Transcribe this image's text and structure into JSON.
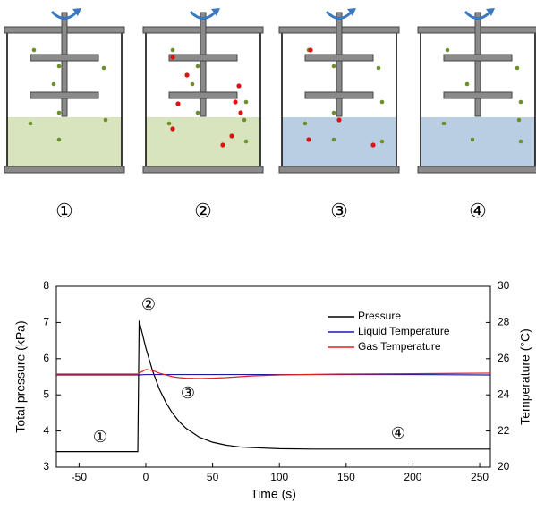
{
  "diagram": {
    "labels": [
      "①",
      "②",
      "③",
      "④"
    ]
  },
  "chart_data": {
    "type": "line",
    "xlabel": "Time (s)",
    "ylabel": "Total pressure (kPa)",
    "y2label": "Temperature (°C)",
    "x": [
      -67,
      -6,
      -5,
      0,
      5,
      10,
      15,
      20,
      25,
      30,
      40,
      50,
      60,
      70,
      80,
      100,
      125,
      150,
      200,
      258
    ],
    "series": [
      {
        "name": "Pressure",
        "color": "#000000",
        "values": [
          3.43,
          3.43,
          7.05,
          6.3,
          5.67,
          5.17,
          4.79,
          4.49,
          4.26,
          4.08,
          3.83,
          3.69,
          3.61,
          3.56,
          3.54,
          3.51,
          3.5,
          3.5,
          3.5,
          3.5
        ]
      },
      {
        "name": "Liquid Temperature",
        "color": "#1a1aa6",
        "axis": "y2",
        "values": [
          25.1,
          25.1,
          25.1,
          25.12,
          25.12,
          25.12,
          25.12,
          25.12,
          25.12,
          25.12,
          25.12,
          25.12,
          25.12,
          25.12,
          25.12,
          25.12,
          25.12,
          25.12,
          25.12,
          25.1
        ]
      },
      {
        "name": "Gas Temperature",
        "color": "#e02020",
        "axis": "y2",
        "values": [
          25.15,
          25.15,
          25.2,
          25.4,
          25.35,
          25.2,
          25.1,
          25.0,
          24.95,
          24.92,
          24.9,
          24.92,
          24.95,
          25.0,
          25.05,
          25.1,
          25.13,
          25.15,
          25.17,
          25.2
        ]
      }
    ],
    "annotations": [
      "①",
      "②",
      "③",
      "④"
    ],
    "xlim": [
      -67,
      258
    ],
    "xticks": [
      -50,
      0,
      50,
      100,
      150,
      200,
      250
    ],
    "ylim": [
      3,
      8
    ],
    "yticks": [
      3,
      4,
      5,
      6,
      7,
      8
    ],
    "y2lim": [
      20,
      30
    ],
    "y2ticks": [
      20,
      22,
      24,
      26,
      28,
      30
    ],
    "legend": "upper right"
  }
}
